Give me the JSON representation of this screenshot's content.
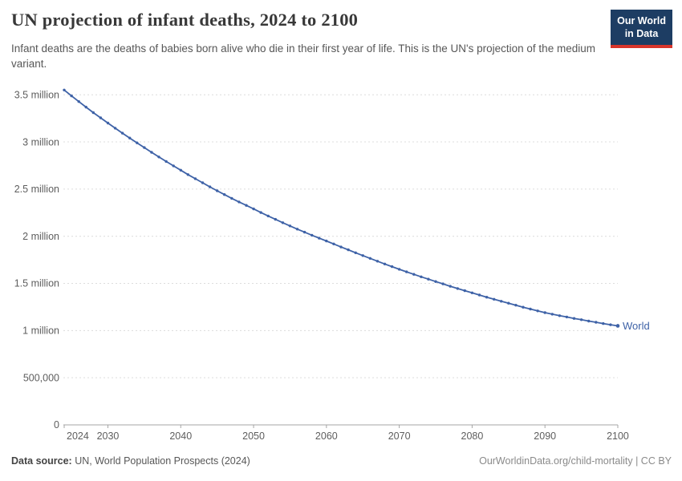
{
  "header": {
    "title": "UN projection of infant deaths, 2024 to 2100",
    "subtitle": "Infant deaths are the deaths of babies born alive who die in their first year of life. This is the UN's projection of the medium variant.",
    "logo_line1": "Our World",
    "logo_line2": "in Data"
  },
  "colors": {
    "line": "#3e62a7",
    "grid": "#dcdcdc",
    "axis": "#a5a5a5",
    "tick_text": "#5e5e5e",
    "logo_bg": "#1d3d63",
    "logo_stripe": "#d8352b"
  },
  "chart_data": {
    "type": "line",
    "title": "UN projection of infant deaths, 2024 to 2100",
    "xlabel": "",
    "ylabel": "",
    "unit": "infant deaths (millions)",
    "x_start": 2024,
    "x_end": 2100,
    "ylim": [
      0,
      3.57
    ],
    "grid": "dashed-horizontal",
    "legend_position": "end-of-line",
    "x_ticks": [
      2024,
      2030,
      2040,
      2050,
      2060,
      2070,
      2080,
      2090,
      2100
    ],
    "y_ticks": [
      {
        "value": 0,
        "label": "0"
      },
      {
        "value": 0.5,
        "label": "500,000"
      },
      {
        "value": 1,
        "label": "1 million"
      },
      {
        "value": 1.5,
        "label": "1.5 million"
      },
      {
        "value": 2,
        "label": "2 million"
      },
      {
        "value": 2.5,
        "label": "2.5 million"
      },
      {
        "value": 3,
        "label": "3 million"
      },
      {
        "value": 3.5,
        "label": "3.5 million"
      }
    ],
    "series": [
      {
        "name": "World",
        "color": "#3e62a7",
        "years": [
          2024,
          2025,
          2026,
          2027,
          2028,
          2029,
          2030,
          2031,
          2032,
          2033,
          2034,
          2035,
          2036,
          2037,
          2038,
          2039,
          2040,
          2041,
          2042,
          2043,
          2044,
          2045,
          2046,
          2047,
          2048,
          2049,
          2050,
          2051,
          2052,
          2053,
          2054,
          2055,
          2056,
          2057,
          2058,
          2059,
          2060,
          2061,
          2062,
          2063,
          2064,
          2065,
          2066,
          2067,
          2068,
          2069,
          2070,
          2071,
          2072,
          2073,
          2074,
          2075,
          2076,
          2077,
          2078,
          2079,
          2080,
          2081,
          2082,
          2083,
          2084,
          2085,
          2086,
          2087,
          2088,
          2089,
          2090,
          2091,
          2092,
          2093,
          2094,
          2095,
          2096,
          2097,
          2098,
          2099,
          2100
        ],
        "values_millions": [
          3.55,
          3.488,
          3.428,
          3.369,
          3.311,
          3.255,
          3.2,
          3.146,
          3.093,
          3.041,
          2.99,
          2.94,
          2.89,
          2.841,
          2.793,
          2.746,
          2.7,
          2.654,
          2.61,
          2.567,
          2.524,
          2.482,
          2.442,
          2.402,
          2.364,
          2.327,
          2.29,
          2.252,
          2.215,
          2.179,
          2.144,
          2.11,
          2.076,
          2.043,
          2.011,
          1.98,
          1.95,
          1.918,
          1.886,
          1.856,
          1.825,
          1.795,
          1.765,
          1.736,
          1.706,
          1.678,
          1.65,
          1.623,
          1.596,
          1.57,
          1.545,
          1.52,
          1.495,
          1.47,
          1.446,
          1.423,
          1.4,
          1.377,
          1.354,
          1.332,
          1.311,
          1.29,
          1.269,
          1.248,
          1.228,
          1.209,
          1.19,
          1.174,
          1.158,
          1.144,
          1.129,
          1.115,
          1.101,
          1.088,
          1.074,
          1.062,
          1.05
        ]
      }
    ]
  },
  "footer": {
    "source_label": "Data source:",
    "source_value": " UN, World Population Prospects (2024)",
    "url": "OurWorldinData.org/child-mortality",
    "separator": " | ",
    "license": "CC BY"
  }
}
